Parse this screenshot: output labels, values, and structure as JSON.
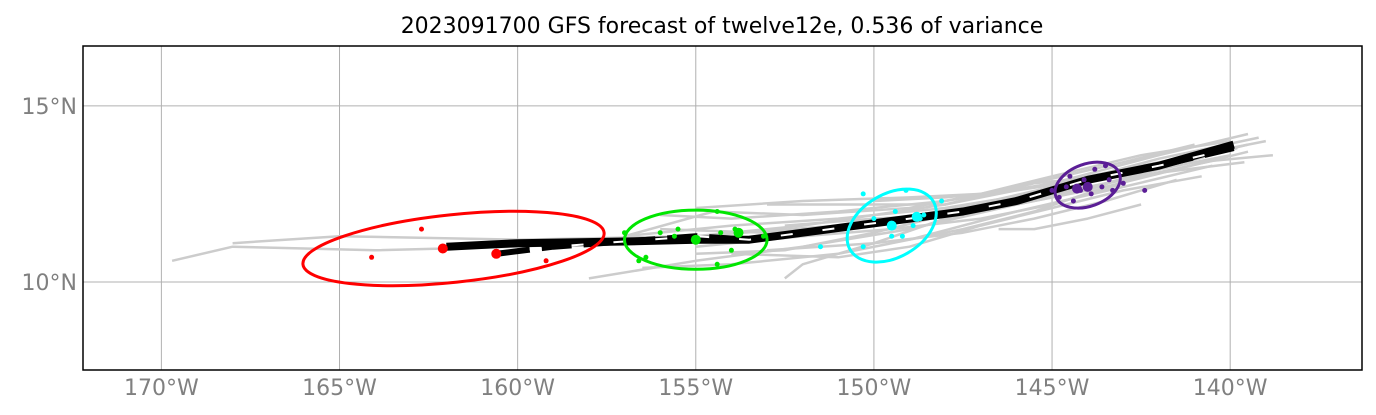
{
  "chart_data": {
    "type": "line",
    "title": "2023091700 GFS forecast of twelve12e, 0.536 of variance",
    "xlim": [
      -172.2,
      -136.3
    ],
    "ylim": [
      7.5,
      16.7
    ],
    "grid": true,
    "x_ticks": [
      {
        "value": -170,
        "label": "170°W"
      },
      {
        "value": -165,
        "label": "165°W"
      },
      {
        "value": -160,
        "label": "160°W"
      },
      {
        "value": -155,
        "label": "155°W"
      },
      {
        "value": -150,
        "label": "150°W"
      },
      {
        "value": -145,
        "label": "145°W"
      },
      {
        "value": -140,
        "label": "140°W"
      }
    ],
    "y_ticks": [
      {
        "value": 15,
        "label": "15°N"
      },
      {
        "value": 10,
        "label": "10°N"
      }
    ],
    "colors": {
      "ensemble": "#cccccc",
      "ensemble_mean": "#000000",
      "time1": "#ff0000",
      "time2": "#00e600",
      "time3": "#00ffff",
      "time4": "#5b1e96"
    },
    "ensemble_tracks": [
      [
        [
          -139.5,
          14.2
        ],
        [
          -142,
          13.6
        ],
        [
          -145,
          12.8
        ],
        [
          -148,
          12.2
        ],
        [
          -152,
          11.6
        ],
        [
          -156,
          11.2
        ],
        [
          -160,
          11.0
        ],
        [
          -164,
          10.9
        ],
        [
          -168,
          11.0
        ],
        [
          -169.7,
          10.6
        ]
      ],
      [
        [
          -139.2,
          14.1
        ],
        [
          -142,
          13.5
        ],
        [
          -145,
          12.7
        ],
        [
          -148,
          12.0
        ],
        [
          -151,
          11.6
        ],
        [
          -155,
          11.3
        ],
        [
          -160,
          11.2
        ],
        [
          -165,
          11.3
        ],
        [
          -168,
          11.1
        ]
      ],
      [
        [
          -138.8,
          13.6
        ],
        [
          -142,
          13.3
        ],
        [
          -145,
          12.6
        ],
        [
          -148,
          12.1
        ],
        [
          -151,
          11.8
        ],
        [
          -154,
          11.6
        ],
        [
          -157,
          11.3
        ]
      ],
      [
        [
          -139.0,
          14.0
        ],
        [
          -142,
          13.4
        ],
        [
          -145,
          12.8
        ],
        [
          -148,
          12.3
        ],
        [
          -151,
          12.0
        ],
        [
          -154,
          11.8
        ],
        [
          -156,
          11.9
        ]
      ],
      [
        [
          -139.6,
          13.4
        ],
        [
          -142,
          13.1
        ],
        [
          -145,
          12.5
        ],
        [
          -148,
          11.9
        ],
        [
          -150,
          11.4
        ],
        [
          -152.5,
          10.9
        ],
        [
          -155,
          10.8
        ]
      ],
      [
        [
          -139.8,
          13.8
        ],
        [
          -142,
          13.2
        ],
        [
          -145,
          12.4
        ],
        [
          -148,
          11.8
        ],
        [
          -150,
          11.1
        ],
        [
          -152,
          10.5
        ],
        [
          -152.5,
          10.1
        ]
      ],
      [
        [
          -140.2,
          13.5
        ],
        [
          -143,
          12.9
        ],
        [
          -146,
          12.2
        ],
        [
          -149,
          11.5
        ],
        [
          -152,
          11.0
        ],
        [
          -155,
          10.6
        ],
        [
          -158,
          10.1
        ]
      ],
      [
        [
          -140.5,
          13.3
        ],
        [
          -143,
          12.7
        ],
        [
          -146,
          12.0
        ],
        [
          -149,
          11.2
        ],
        [
          -151,
          10.8
        ],
        [
          -154,
          10.5
        ],
        [
          -156.5,
          10.4
        ]
      ],
      [
        [
          -140.0,
          14.0
        ],
        [
          -142.5,
          13.6
        ],
        [
          -145,
          13.0
        ],
        [
          -147,
          12.5
        ],
        [
          -149,
          12.4
        ],
        [
          -152,
          12.3
        ],
        [
          -155,
          12.1
        ]
      ],
      [
        [
          -141.0,
          13.9
        ],
        [
          -143,
          13.4
        ],
        [
          -146,
          12.7
        ],
        [
          -149,
          12.1
        ],
        [
          -152,
          11.9
        ],
        [
          -154.5,
          12.0
        ],
        [
          -157,
          11.3
        ]
      ],
      [
        [
          -139.5,
          13.9
        ],
        [
          -142,
          13.3
        ],
        [
          -145,
          12.7
        ],
        [
          -147,
          12.2
        ],
        [
          -150,
          11.7
        ],
        [
          -153,
          11.4
        ],
        [
          -156,
          11.5
        ]
      ],
      [
        [
          -140.8,
          13.0
        ],
        [
          -143,
          12.6
        ],
        [
          -145,
          12.1
        ],
        [
          -147,
          11.6
        ],
        [
          -149,
          11.0
        ],
        [
          -151,
          10.7
        ],
        [
          -154,
          10.8
        ]
      ],
      [
        [
          -141.5,
          12.9
        ],
        [
          -143.5,
          12.3
        ],
        [
          -145.5,
          11.8
        ],
        [
          -147.5,
          11.4
        ],
        [
          -150,
          11.1
        ],
        [
          -153,
          10.9
        ]
      ],
      [
        [
          -141.2,
          13.5
        ],
        [
          -143.5,
          13.0
        ],
        [
          -145.5,
          12.8
        ],
        [
          -148,
          12.2
        ],
        [
          -150,
          12.2
        ],
        [
          -153,
          12.2
        ]
      ],
      [
        [
          -142.0,
          13.3
        ],
        [
          -144,
          12.6
        ],
        [
          -146,
          12.2
        ],
        [
          -148,
          11.9
        ],
        [
          -150,
          11.8
        ],
        [
          -152.5,
          11.6
        ]
      ],
      [
        [
          -143.0,
          12.8
        ],
        [
          -145,
          12.2
        ],
        [
          -147,
          11.8
        ],
        [
          -149.5,
          11.5
        ],
        [
          -152,
          11.3
        ],
        [
          -155,
          11.0
        ]
      ],
      [
        [
          -139.5,
          13.7
        ],
        [
          -141.5,
          13.2
        ],
        [
          -143.5,
          12.7
        ],
        [
          -145.5,
          12.0
        ],
        [
          -147.5,
          11.5
        ],
        [
          -149,
          11.2
        ]
      ],
      [
        [
          -140.0,
          13.6
        ],
        [
          -142,
          13.2
        ],
        [
          -144,
          12.9
        ],
        [
          -146,
          12.6
        ],
        [
          -148,
          12.4
        ],
        [
          -150,
          12.3
        ]
      ],
      [
        [
          -142.5,
          12.2
        ],
        [
          -144,
          11.8
        ],
        [
          -145.5,
          11.5
        ],
        [
          -146.5,
          11.5
        ]
      ]
    ],
    "mean_track": [
      [
        -139.9,
        13.8
      ],
      [
        -142,
        13.3
      ],
      [
        -144,
        12.9
      ],
      [
        -145,
        12.6
      ],
      [
        -146,
        12.3
      ],
      [
        -147.5,
        12.0
      ],
      [
        -149,
        11.8
      ],
      [
        -150.5,
        11.6
      ],
      [
        -152,
        11.4
      ],
      [
        -153.5,
        11.2
      ],
      [
        -155,
        11.3
      ],
      [
        -157,
        11.15
      ],
      [
        -159,
        11.0
      ],
      [
        -160.6,
        10.8
      ]
    ],
    "control_track": [
      [
        -139.9,
        13.9
      ],
      [
        -142,
        13.3
      ],
      [
        -144,
        12.9
      ],
      [
        -145,
        12.6
      ],
      [
        -146,
        12.3
      ],
      [
        -147.5,
        12.0
      ],
      [
        -149,
        11.8
      ],
      [
        -150.5,
        11.6
      ],
      [
        -152,
        11.4
      ],
      [
        -153.5,
        11.2
      ],
      [
        -155,
        11.2
      ],
      [
        -157,
        11.15
      ],
      [
        -160,
        11.1
      ],
      [
        -162,
        11.0
      ]
    ],
    "time_points": [
      {
        "color_key": "time1",
        "mean": [
          -160.6,
          10.8
        ],
        "control": [
          -162.1,
          10.95
        ],
        "ellipse": {
          "center": [
            -161.8,
            10.95
          ],
          "semi_axes": [
            4.25,
            1.6
          ],
          "angle_deg": 6
        },
        "members": [
          [
            -162.7,
            11.5
          ],
          [
            -164.1,
            10.7
          ],
          [
            -159.2,
            10.6
          ]
        ]
      },
      {
        "color_key": "time2",
        "mean": [
          -155.0,
          11.2
        ],
        "control": [
          -153.8,
          11.4
        ],
        "ellipse": {
          "center": [
            -155.0,
            11.2
          ],
          "semi_axes": [
            2.0,
            1.4
          ],
          "angle_deg": 0
        },
        "members": [
          [
            -156.4,
            10.7
          ],
          [
            -154.4,
            12.0
          ],
          [
            -154.3,
            11.4
          ],
          [
            -153.1,
            11.3
          ],
          [
            -155.6,
            11.3
          ],
          [
            -157.0,
            11.4
          ],
          [
            -154.0,
            10.9
          ],
          [
            -154.4,
            10.5
          ],
          [
            -156.6,
            10.6
          ],
          [
            -155.5,
            11.5
          ],
          [
            -153.9,
            11.5
          ],
          [
            -156.0,
            11.4
          ]
        ]
      },
      {
        "color_key": "time3",
        "mean": [
          -149.5,
          11.6
        ],
        "control": [
          -148.8,
          11.85
        ],
        "ellipse": {
          "center": [
            -149.5,
            11.6
          ],
          "semi_axes": [
            1.35,
            1.5
          ],
          "angle_deg": 30
        },
        "members": [
          [
            -150.3,
            12.5
          ],
          [
            -149.1,
            12.6
          ],
          [
            -148.1,
            12.3
          ],
          [
            -148.7,
            11.8
          ],
          [
            -149.5,
            11.3
          ],
          [
            -150.3,
            11.0
          ],
          [
            -151.5,
            11.0
          ],
          [
            -148.9,
            11.6
          ],
          [
            -149.4,
            12.0
          ],
          [
            -150.0,
            11.8
          ],
          [
            -149.2,
            11.3
          ],
          [
            -148.6,
            11.9
          ]
        ]
      },
      {
        "color_key": "time4",
        "mean": [
          -144.0,
          12.7
        ],
        "control": [
          -144.3,
          12.65
        ],
        "ellipse": {
          "center": [
            -144.0,
            12.75
          ],
          "semi_axes": [
            0.95,
            1.0
          ],
          "angle_deg": 20
        },
        "members": [
          [
            -144.5,
            13.0
          ],
          [
            -143.8,
            13.2
          ],
          [
            -143.4,
            12.9
          ],
          [
            -144.2,
            12.6
          ],
          [
            -144.8,
            12.4
          ],
          [
            -143.5,
            13.3
          ],
          [
            -143.0,
            12.8
          ],
          [
            -142.4,
            12.6
          ],
          [
            -144.6,
            12.7
          ],
          [
            -143.9,
            12.5
          ],
          [
            -144.1,
            12.9
          ],
          [
            -143.6,
            12.7
          ],
          [
            -145.0,
            12.6
          ],
          [
            -143.3,
            12.6
          ],
          [
            -144.4,
            12.3
          ]
        ]
      }
    ]
  }
}
